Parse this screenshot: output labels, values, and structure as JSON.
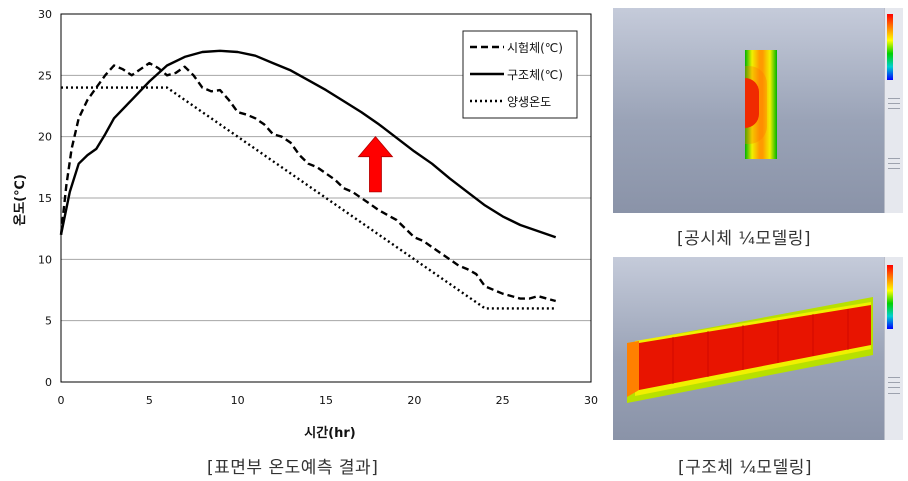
{
  "chart_data": {
    "type": "line",
    "title": "",
    "xlabel": "시간(hr)",
    "ylabel": "온도(℃)",
    "xlim": [
      0,
      30
    ],
    "ylim": [
      0,
      30
    ],
    "xticks": [
      0,
      5,
      10,
      15,
      20,
      25,
      30
    ],
    "yticks": [
      0,
      5,
      10,
      15,
      20,
      25,
      30
    ],
    "grid": "horizontal",
    "legend_position": "top-right",
    "series": [
      {
        "name": "시험체(℃)",
        "style": "dashed",
        "color": "#000000",
        "x": [
          0,
          0.3,
          0.6,
          1,
          1.5,
          2,
          2.5,
          3,
          3.5,
          4,
          4.5,
          5,
          5.5,
          6,
          6.5,
          7,
          7.5,
          8,
          8.5,
          9,
          9.5,
          10,
          10.5,
          11,
          11.5,
          12,
          12.5,
          13,
          13.5,
          14,
          14.5,
          15,
          15.5,
          16,
          16.5,
          17,
          17.5,
          18,
          18.5,
          19,
          19.5,
          20,
          20.5,
          21,
          21.5,
          22,
          22.5,
          23,
          23.5,
          24,
          24.5,
          25,
          25.5,
          26,
          26.5,
          27,
          27.5,
          28
        ],
        "y": [
          12,
          16,
          19,
          21.5,
          23,
          24,
          25,
          25.8,
          25.5,
          25,
          25.5,
          26,
          25.6,
          25,
          25.2,
          25.7,
          25,
          24,
          23.7,
          23.8,
          23,
          22,
          21.8,
          21.5,
          21,
          20.2,
          20,
          19.5,
          18.5,
          17.8,
          17.5,
          17,
          16.5,
          15.8,
          15.5,
          15,
          14.5,
          14,
          13.6,
          13.2,
          12.5,
          11.8,
          11.5,
          11,
          10.5,
          10,
          9.5,
          9.2,
          8.8,
          7.8,
          7.5,
          7.2,
          7,
          6.8,
          6.8,
          7,
          6.8,
          6.6
        ]
      },
      {
        "name": "구조체(℃)",
        "style": "solid",
        "color": "#000000",
        "x": [
          0,
          0.5,
          1,
          1.5,
          2,
          2.5,
          3,
          4,
          5,
          6,
          7,
          8,
          9,
          10,
          11,
          12,
          13,
          14,
          15,
          16,
          17,
          18,
          19,
          20,
          21,
          22,
          23,
          24,
          25,
          26,
          27,
          28
        ],
        "y": [
          12,
          15.5,
          17.8,
          18.5,
          19,
          20.2,
          21.5,
          23,
          24.5,
          25.8,
          26.5,
          26.9,
          27,
          26.9,
          26.6,
          26,
          25.4,
          24.6,
          23.8,
          22.9,
          22,
          21,
          19.9,
          18.8,
          17.8,
          16.6,
          15.5,
          14.4,
          13.5,
          12.8,
          12.3,
          11.8
        ]
      },
      {
        "name": "양생온도",
        "style": "dotted",
        "color": "#000000",
        "x": [
          0,
          6,
          24,
          28
        ],
        "y": [
          24,
          24,
          6,
          6
        ]
      }
    ],
    "annotations": [
      {
        "type": "arrow",
        "direction": "up",
        "color": "#ff0000",
        "x": 17.8,
        "y_from": 15.5,
        "y_to": 20
      }
    ]
  },
  "captions": {
    "chart": "[표면부 온도예측 결과]",
    "specimen": "[공시체 ¼모델링]",
    "structure": "[구조체 ¼모델링]"
  },
  "images": {
    "specimen": {
      "subject": "specimen quarter model FEM contour",
      "colors": [
        "#ff0000",
        "#ffff00",
        "#00c800",
        "#0000ff"
      ]
    },
    "structure": {
      "subject": "structure quarter model FEM contour",
      "colors": [
        "#ff0000",
        "#ffff00",
        "#00c800",
        "#ff8000"
      ]
    }
  }
}
